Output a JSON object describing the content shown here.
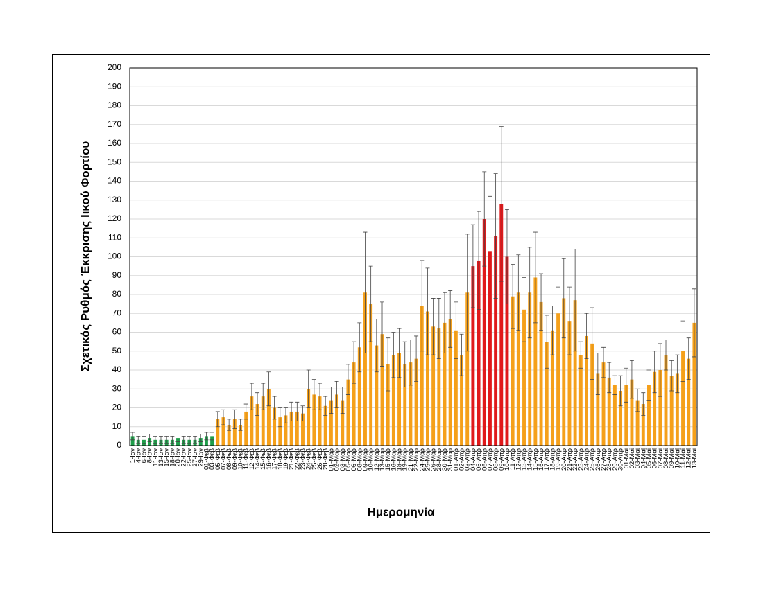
{
  "chart_data": {
    "type": "bar",
    "y_label": "Σχετικός Ρυθμός Έκκρισης Ιικού Φορτίου",
    "x_label": "Ημερομηνία",
    "categories": [
      "1-Ιαν",
      "4-Ιαν",
      "6-Ιαν",
      "8-Ιαν",
      "11-Ιαν",
      "13-Ιαν",
      "15-Ιαν",
      "18-Ιαν",
      "20-Ιαν",
      "22-Ιαν",
      "25-Ιαν",
      "27-Ιαν",
      "29-Ιαν",
      "01-Φεβ",
      "03-Φεβ",
      "05-Φεβ",
      "07-Φεβ",
      "08-Φεβ",
      "09-Φεβ",
      "10-Φεβ",
      "11-Φεβ",
      "12-Φεβ",
      "14-Φεβ",
      "15-Φεβ",
      "16-Φεβ",
      "17-Φεβ",
      "18-Φεβ",
      "19-Φεβ",
      "21-Φεβ",
      "22-Φεβ",
      "23-Φεβ",
      "24-Φεβ",
      "25-Φεβ",
      "26-Φεβ",
      "28-Φεβ",
      "01-Μαρ",
      "02-Μαρ",
      "03-Μαρ",
      "05-Μαρ",
      "06-Μαρ",
      "08-Μαρ",
      "09-Μαρ",
      "10-Μαρ",
      "12-Μαρ",
      "13-Μαρ",
      "15-Μαρ",
      "16-Μαρ",
      "18-Μαρ",
      "19-Μαρ",
      "21-Μαρ",
      "22-Μαρ",
      "24-Μαρ",
      "25-Μαρ",
      "26-Μαρ",
      "28-Μαρ",
      "30-Μαρ",
      "31-Μαρ",
      "01-Απρ",
      "02-Απρ",
      "03-Απρ",
      "04-Απρ",
      "05-Απρ",
      "06-Απρ",
      "07-Απρ",
      "08-Απρ",
      "09-Απρ",
      "10-Απρ",
      "11-Απρ",
      "12-Απρ",
      "13-Απρ",
      "14-Απρ",
      "15-Απρ",
      "16-Απρ",
      "17-Απρ",
      "18-Απρ",
      "19-Απρ",
      "20-Απρ",
      "21-Απρ",
      "22-Απρ",
      "23-Απρ",
      "24-Απρ",
      "25-Απρ",
      "26-Απρ",
      "27-Απρ",
      "28-Απρ",
      "29-Απρ",
      "30-Απρ",
      "01-Μαϊ",
      "02-Μαϊ",
      "03-Μαϊ",
      "04-Μαϊ",
      "05-Μαϊ",
      "06-Μαϊ",
      "07-Μαϊ",
      "08-Μαϊ",
      "09-Μαϊ",
      "10-Μαϊ",
      "11-Μαϊ",
      "12-Μαϊ",
      "13-Μαϊ"
    ],
    "values": [
      5,
      3,
      3,
      4,
      3,
      3,
      3,
      3,
      4,
      3,
      3,
      3,
      4,
      5,
      5,
      14,
      15,
      11,
      14,
      11,
      18,
      26,
      22,
      26,
      30,
      20,
      15,
      16,
      18,
      18,
      17,
      30,
      27,
      26,
      21,
      24,
      27,
      24,
      35,
      44,
      52,
      81,
      75,
      53,
      59,
      43,
      48,
      49,
      43,
      44,
      46,
      74,
      71,
      63,
      62,
      65,
      67,
      61,
      48,
      81,
      95,
      98,
      120,
      103,
      111,
      128,
      100,
      79,
      81,
      72,
      81,
      89,
      76,
      55,
      61,
      70,
      78,
      66,
      77,
      48,
      58,
      54,
      38,
      44,
      36,
      32,
      29,
      32,
      35,
      24,
      22,
      32,
      39,
      40,
      48,
      37,
      38,
      50,
      46,
      65
    ],
    "errors": [
      2,
      2,
      2,
      2,
      2,
      2,
      2,
      2,
      2,
      2,
      2,
      2,
      2,
      2,
      2,
      4,
      4,
      3,
      5,
      3,
      4,
      7,
      6,
      7,
      9,
      6,
      5,
      4,
      5,
      5,
      4,
      10,
      8,
      7,
      5,
      7,
      7,
      7,
      8,
      11,
      13,
      32,
      20,
      14,
      17,
      14,
      12,
      13,
      12,
      12,
      12,
      24,
      23,
      15,
      16,
      16,
      15,
      15,
      11,
      31,
      22,
      26,
      25,
      29,
      33,
      41,
      25,
      17,
      20,
      17,
      24,
      24,
      15,
      14,
      13,
      14,
      21,
      18,
      27,
      7,
      12,
      19,
      11,
      8,
      8,
      5,
      8,
      9,
      10,
      6,
      6,
      8,
      11,
      14,
      8,
      8,
      10,
      16,
      11,
      18
    ],
    "colors": [
      "#1e9e4a",
      "#1e9e4a",
      "#1e9e4a",
      "#1e9e4a",
      "#1e9e4a",
      "#1e9e4a",
      "#1e9e4a",
      "#1e9e4a",
      "#1e9e4a",
      "#1e9e4a",
      "#1e9e4a",
      "#1e9e4a",
      "#1e9e4a",
      "#1e9e4a",
      "#1e9e4a",
      "#f5a01a",
      "#f5a01a",
      "#f5a01a",
      "#f5a01a",
      "#f5a01a",
      "#f5a01a",
      "#f5a01a",
      "#f5a01a",
      "#f5a01a",
      "#f5a01a",
      "#f5a01a",
      "#f5a01a",
      "#f5a01a",
      "#f5a01a",
      "#f5a01a",
      "#f5a01a",
      "#f5a01a",
      "#f5a01a",
      "#f5a01a",
      "#f5a01a",
      "#f5a01a",
      "#f5a01a",
      "#f5a01a",
      "#f5a01a",
      "#f5a01a",
      "#f5a01a",
      "#f5a01a",
      "#f5a01a",
      "#f5a01a",
      "#f5a01a",
      "#f5a01a",
      "#f5a01a",
      "#f5a01a",
      "#f5a01a",
      "#f5a01a",
      "#f5a01a",
      "#f5a01a",
      "#f5a01a",
      "#f5a01a",
      "#f5a01a",
      "#f5a01a",
      "#f5a01a",
      "#f5a01a",
      "#f5a01a",
      "#f5a01a",
      "#e0191b",
      "#e0191b",
      "#e0191b",
      "#e0191b",
      "#e0191b",
      "#e0191b",
      "#e0191b",
      "#f5a01a",
      "#f5a01a",
      "#f5a01a",
      "#f5a01a",
      "#f5a01a",
      "#f5a01a",
      "#f5a01a",
      "#f5a01a",
      "#f5a01a",
      "#f5a01a",
      "#f5a01a",
      "#f5a01a",
      "#f5a01a",
      "#f5a01a",
      "#f5a01a",
      "#f5a01a",
      "#f5a01a",
      "#f5a01a",
      "#f5a01a",
      "#f5a01a",
      "#f5a01a",
      "#f5a01a",
      "#f5a01a",
      "#f5a01a",
      "#f5a01a",
      "#f5a01a",
      "#f5a01a",
      "#f5a01a",
      "#f5a01a",
      "#f5a01a",
      "#f5a01a",
      "#f5a01a",
      "#f5a01a"
    ],
    "ylim": [
      0,
      200
    ],
    "yticks": [
      0,
      10,
      20,
      30,
      40,
      50,
      60,
      70,
      80,
      90,
      100,
      110,
      120,
      130,
      140,
      150,
      160,
      170,
      180,
      190,
      200
    ],
    "grid": true
  }
}
